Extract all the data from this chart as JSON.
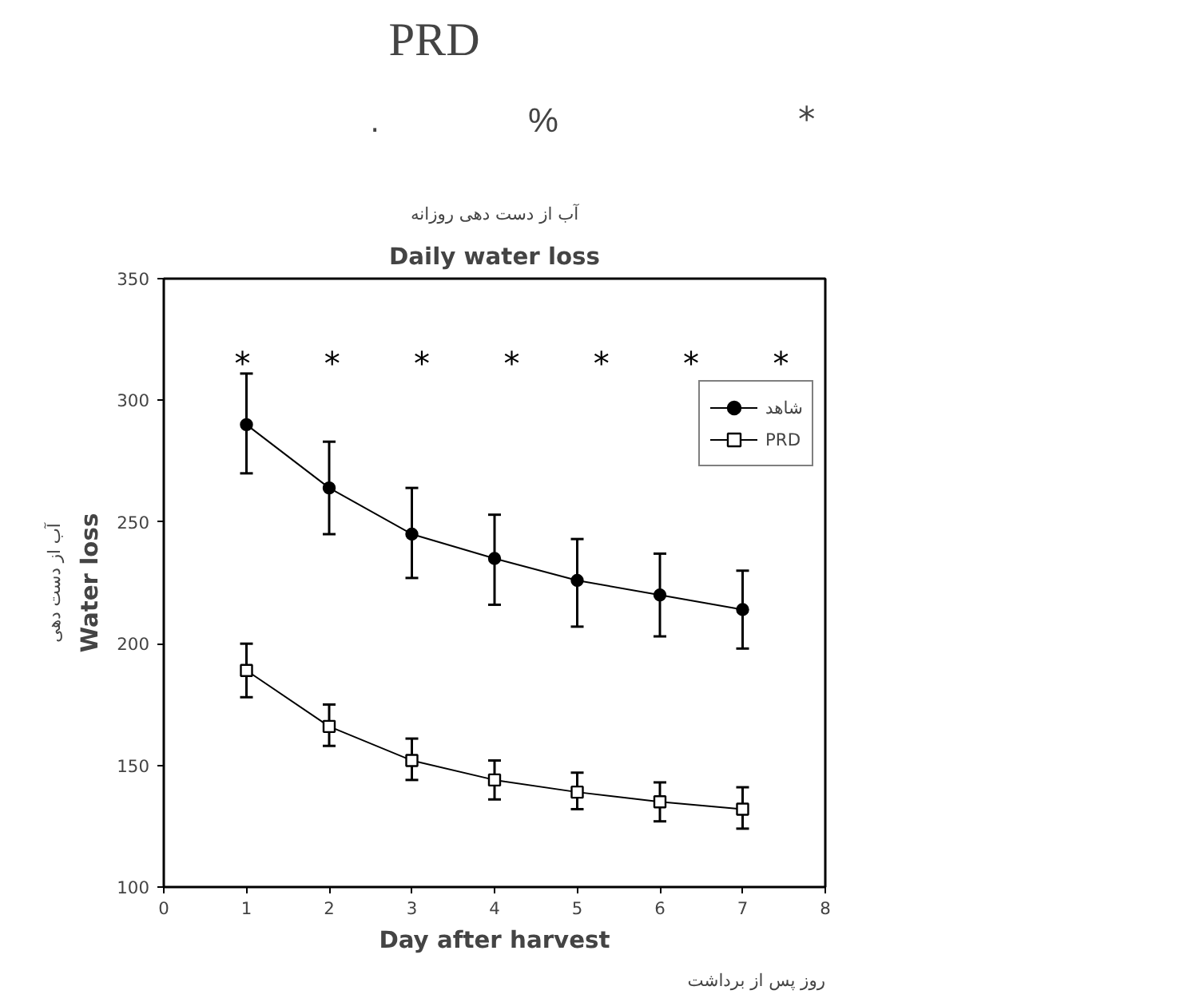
{
  "chart_data": {
    "type": "line",
    "title": "Daily water loss",
    "subtitle": "آب از دست دهی روزانه",
    "xlabel": "Day after harvest",
    "ylabel": "Water loss",
    "x": [
      1,
      2,
      3,
      4,
      5,
      6,
      7
    ],
    "series": [
      {
        "name": "شاهد",
        "color": "#000000",
        "marker": "circle",
        "values": [
          290,
          264,
          245,
          235,
          226,
          220,
          214
        ],
        "errors": [
          [
            270,
            311
          ],
          [
            245,
            283
          ],
          [
            227,
            264
          ],
          [
            216,
            253
          ],
          [
            207,
            243
          ],
          [
            203,
            237
          ],
          [
            198,
            230
          ]
        ]
      },
      {
        "name": "PRD",
        "color": "#000000",
        "marker": "square",
        "values": [
          189,
          166,
          152,
          144,
          139,
          135,
          132
        ],
        "errors": [
          [
            178,
            200
          ],
          [
            158,
            175
          ],
          [
            144,
            161
          ],
          [
            136,
            152
          ],
          [
            132,
            147
          ],
          [
            127,
            143
          ],
          [
            124,
            141
          ]
        ]
      }
    ],
    "xlim": [
      0,
      8
    ],
    "xticks": [
      0,
      1,
      2,
      3,
      4,
      5,
      6,
      7,
      8
    ],
    "ylim": [
      100,
      350
    ],
    "yticks": [
      100,
      150,
      200,
      250,
      300,
      350
    ],
    "grid": false,
    "legend": "top right",
    "line_style": "solid",
    "annotations": [
      "PRD",
      ".",
      "%",
      "*",
      "روز پس از برداشت",
      "آب از دست دهی",
      "*",
      "*",
      "*",
      "*",
      "*",
      "*",
      "*"
    ]
  }
}
